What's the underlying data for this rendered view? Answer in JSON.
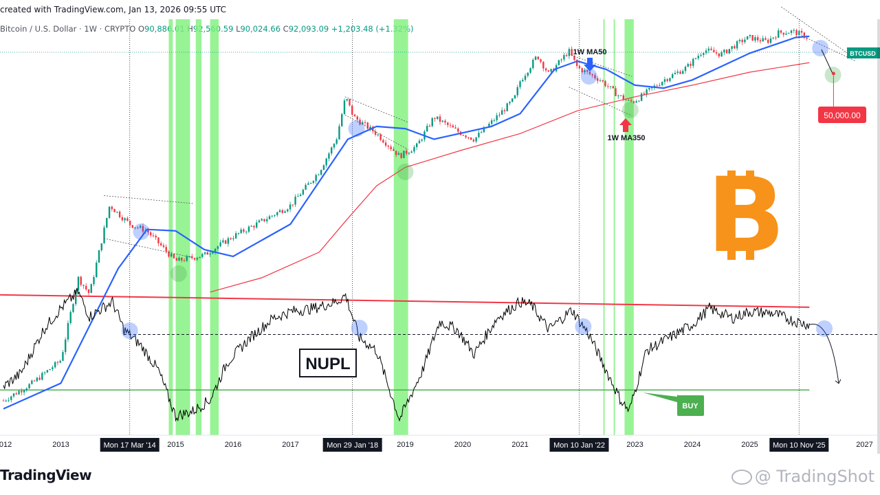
{
  "header": {
    "created_with": "created with TradingView.com, Jan 13, 2026 09:55 UTC"
  },
  "symbol": {
    "name": "Bitcoin / U.S. Dollar · 1W · CRYPTO",
    "o_label": "O",
    "o": "90,886.01",
    "h_label": "H",
    "h": "92,560.59",
    "l_label": "L",
    "l": "90,024.66",
    "c_label": "C",
    "c": "92,093.09",
    "change": "+1,203.48 (+1.32%)"
  },
  "footer": {
    "brand": "TradingView",
    "watermark": "@ TradingShot"
  },
  "colors": {
    "up": "#089981",
    "down": "#f23645",
    "ma50": "#2962ff",
    "ma350": "#f23645",
    "buy_zone": "#7ef07a",
    "nupl": "#000000",
    "bitcoin": "#f7931a",
    "buy_label": "#4caf50"
  },
  "chart_data": {
    "type": "line",
    "x_axis": {
      "labels": [
        "2012",
        "2013",
        "2015",
        "2016",
        "2017",
        "2019",
        "2020",
        "2021",
        "2023",
        "2024",
        "2025",
        "2027"
      ],
      "label_years": [
        2012.0,
        2013.0,
        2015.0,
        2016.0,
        2017.0,
        2019.0,
        2020.0,
        2021.0,
        2023.0,
        2024.0,
        2025.0,
        2027.0
      ],
      "highlighted_dates": [
        {
          "label": "Mon 17 Mar '14",
          "year": 2014.2
        },
        {
          "label": "Mon 29 Jan '18",
          "year": 2018.08
        },
        {
          "label": "Mon 10 Jan '22",
          "year": 2022.03
        },
        {
          "label": "Mon 10 Nov '25",
          "year": 2025.86
        }
      ]
    },
    "price_axis": {
      "scale": "log",
      "last_price_label": "BTCUSD",
      "target_label": "50,000.00",
      "target_value": 50000
    },
    "annotations": {
      "ma50": "1W MA50",
      "ma350": "1W MA350",
      "indicator": "NUPL",
      "buy": "BUY"
    },
    "buy_zones": [
      [
        2011.85,
        2011.9
      ],
      [
        2014.88,
        2014.95
      ],
      [
        2015.0,
        2015.25
      ],
      [
        2015.35,
        2015.45
      ],
      [
        2015.6,
        2015.75
      ],
      [
        2018.8,
        2019.05
      ],
      [
        2022.45,
        2022.47
      ],
      [
        2022.63,
        2022.65
      ],
      [
        2022.82,
        2022.98
      ]
    ],
    "series": [
      {
        "name": "BTCUSD",
        "x": [
          2012.0,
          2012.5,
          2013.0,
          2013.3,
          2013.5,
          2013.85,
          2014.0,
          2014.2,
          2014.5,
          2015.0,
          2015.5,
          2016.0,
          2016.5,
          2017.0,
          2017.5,
          2017.8,
          2017.96,
          2018.1,
          2018.5,
          2018.9,
          2019.2,
          2019.5,
          2019.9,
          2020.2,
          2020.5,
          2020.9,
          2021.0,
          2021.3,
          2021.5,
          2021.85,
          2022.0,
          2022.4,
          2022.7,
          2022.9,
          2023.0,
          2023.5,
          2023.9,
          2024.2,
          2024.5,
          2024.9,
          2025.0,
          2025.3,
          2025.5,
          2025.75,
          2025.95,
          2026.04
        ],
        "values": [
          5,
          8,
          15,
          140,
          90,
          1000,
          800,
          600,
          500,
          220,
          260,
          430,
          650,
          1000,
          2500,
          6000,
          19000,
          11000,
          7000,
          3800,
          5000,
          11000,
          7500,
          6000,
          9500,
          18000,
          29000,
          58000,
          35000,
          66000,
          42000,
          30000,
          20000,
          16500,
          17000,
          30000,
          42000,
          68000,
          60000,
          90000,
          95000,
          85000,
          108000,
          112000,
          100000,
          92093
        ]
      },
      {
        "name": "1W MA50",
        "x": [
          2012.0,
          2013.0,
          2014.0,
          2014.5,
          2015.0,
          2015.5,
          2016.0,
          2017.0,
          2018.0,
          2018.5,
          2019.0,
          2019.5,
          2020.5,
          2021.0,
          2021.6,
          2022.0,
          2022.5,
          2023.0,
          2023.5,
          2024.0,
          2025.0,
          2025.8,
          2026.04
        ],
        "values": [
          4,
          8,
          180,
          520,
          500,
          300,
          250,
          600,
          6000,
          8500,
          8000,
          6000,
          8500,
          12000,
          40000,
          50000,
          40000,
          26000,
          24000,
          30000,
          62000,
          95000,
          98000
        ]
      },
      {
        "name": "1W MA350",
        "x": [
          2015.6,
          2016.5,
          2017.5,
          2018.0,
          2018.5,
          2019.0,
          2020.0,
          2021.0,
          2022.0,
          2023.0,
          2024.0,
          2025.0,
          2026.04
        ],
        "values": [
          95,
          140,
          280,
          700,
          1700,
          2800,
          4500,
          7000,
          13000,
          19000,
          26000,
          37000,
          48000
        ]
      },
      {
        "name": "NUPL",
        "x": [
          2012.0,
          2012.3,
          2012.7,
          2013.0,
          2013.3,
          2013.5,
          2013.9,
          2014.1,
          2014.4,
          2014.7,
          2015.0,
          2015.3,
          2015.6,
          2015.9,
          2016.3,
          2016.7,
          2017.0,
          2017.4,
          2017.8,
          2017.96,
          2018.2,
          2018.5,
          2018.9,
          2019.3,
          2019.6,
          2019.9,
          2020.2,
          2020.6,
          2021.0,
          2021.2,
          2021.5,
          2021.9,
          2022.2,
          2022.5,
          2022.75,
          2022.9,
          2023.2,
          2023.6,
          2024.0,
          2024.3,
          2024.7,
          2025.0,
          2025.4,
          2025.8,
          2026.04,
          2026.3,
          2026.5
        ],
        "values": [
          0.2,
          0.28,
          0.55,
          0.68,
          0.78,
          0.63,
          0.72,
          0.55,
          0.45,
          0.3,
          0.02,
          0.05,
          0.12,
          0.35,
          0.5,
          0.62,
          0.66,
          0.68,
          0.72,
          0.76,
          0.5,
          0.42,
          0.0,
          0.3,
          0.6,
          0.55,
          0.4,
          0.62,
          0.72,
          0.7,
          0.55,
          0.67,
          0.52,
          0.3,
          0.12,
          0.05,
          0.42,
          0.5,
          0.58,
          0.68,
          0.62,
          0.66,
          0.65,
          0.6,
          0.58,
          0.42,
          0.22
        ]
      }
    ],
    "nupl_levels": {
      "top": 0.75,
      "mid": 0.52,
      "buy": 0.18
    }
  }
}
